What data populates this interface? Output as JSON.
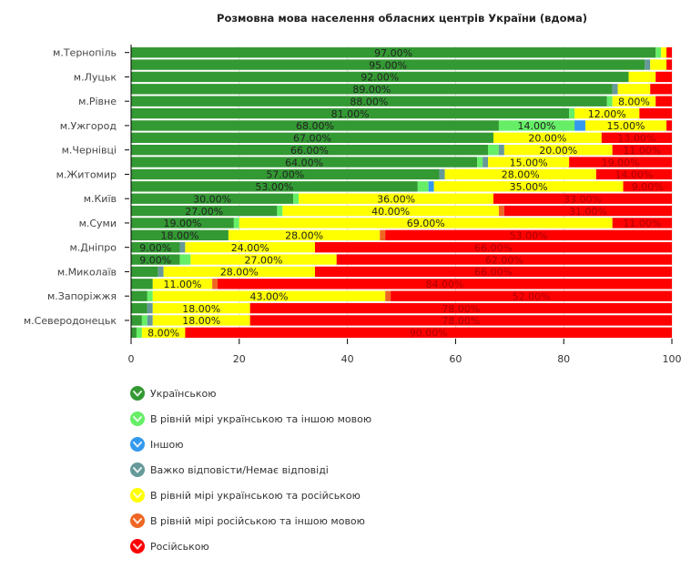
{
  "chart_data": {
    "type": "bar",
    "orientation": "horizontal",
    "stacked": true,
    "title": "Розмовна мова населення обласних центрів України (вдома)",
    "xlabel": "",
    "ylabel": "",
    "xlim": [
      0,
      100
    ],
    "xticks": [
      "0",
      "20",
      "40",
      "60",
      "80",
      "100"
    ],
    "grid": true,
    "legend_position": "bottom-left",
    "categories": [
      "м.Тернопіль",
      "",
      "м.Луцьк",
      "",
      "м.Рівне",
      "",
      "м.Ужгород",
      "",
      "м.Чернівці",
      "",
      "м.Житомир",
      "",
      "м.Київ",
      "",
      "м.Суми",
      "",
      "м.Дніпро",
      "",
      "м.Миколаїв",
      "",
      "м.Запоріжжя",
      "",
      "м.Северодонецьк",
      ""
    ],
    "series": [
      {
        "name": "Українською",
        "color": "#339933",
        "values": [
          97,
          95,
          92,
          89,
          88,
          81,
          68,
          67,
          66,
          64,
          57,
          53,
          30,
          27,
          19,
          18,
          9,
          9,
          5,
          4,
          3,
          3,
          2,
          1
        ]
      },
      {
        "name": "В рівній мірі українською та іншою мовою",
        "color": "#66ee66",
        "values": [
          1,
          0,
          0,
          0,
          1,
          1,
          14,
          0,
          2,
          1,
          0,
          2,
          1,
          1,
          1,
          0,
          0,
          2,
          0,
          0,
          1,
          0,
          1,
          1
        ]
      },
      {
        "name": "Іншою",
        "color": "#3399ee",
        "values": [
          0,
          0,
          0,
          0,
          0,
          0,
          2,
          0,
          0,
          0,
          0,
          1,
          0,
          0,
          0,
          0,
          0,
          0,
          0,
          0,
          0,
          0,
          0,
          0
        ]
      },
      {
        "name": "Важко відповісти/Немає відповіді",
        "color": "#669999",
        "values": [
          0,
          1,
          0,
          1,
          0,
          0,
          0,
          0,
          1,
          1,
          1,
          0,
          0,
          0,
          0,
          0,
          1,
          0,
          1,
          0,
          0,
          1,
          1,
          0
        ]
      },
      {
        "name": "В рівній мірі українською та російською",
        "color": "#ffff00",
        "values": [
          1,
          3,
          5,
          6,
          8,
          12,
          15,
          20,
          20,
          15,
          28,
          35,
          36,
          40,
          69,
          28,
          24,
          27,
          28,
          11,
          43,
          18,
          18,
          8
        ]
      },
      {
        "name": "В рівній мірі російською та іншою мовою",
        "color": "#ee6622",
        "values": [
          0,
          0,
          0,
          0,
          0,
          0,
          0,
          0,
          0,
          0,
          0,
          0,
          0,
          1,
          0,
          1,
          0,
          0,
          0,
          1,
          1,
          0,
          0,
          0
        ]
      },
      {
        "name": "Російською",
        "color": "#ff0000",
        "values": [
          1,
          1,
          3,
          4,
          3,
          6,
          1,
          13,
          11,
          19,
          14,
          9,
          33,
          31,
          11,
          53,
          66,
          62,
          66,
          84,
          52,
          78,
          78,
          90
        ]
      }
    ],
    "data_labels": [
      [
        {
          "series": 0,
          "text": "97.00%"
        }
      ],
      [
        {
          "series": 0,
          "text": "95.00%"
        }
      ],
      [
        {
          "series": 0,
          "text": "92.00%"
        }
      ],
      [
        {
          "series": 0,
          "text": "89.00%"
        }
      ],
      [
        {
          "series": 0,
          "text": "88.00%"
        },
        {
          "series": 4,
          "text": "8.00%"
        }
      ],
      [
        {
          "series": 0,
          "text": "81.00%"
        },
        {
          "series": 4,
          "text": "12.00%"
        }
      ],
      [
        {
          "series": 0,
          "text": "68.00%"
        },
        {
          "series": 1,
          "text": "14.00%"
        },
        {
          "series": 4,
          "text": "15.00%"
        }
      ],
      [
        {
          "series": 0,
          "text": "67.00%"
        },
        {
          "series": 4,
          "text": "20.00%"
        },
        {
          "series": 6,
          "text": "13.00%"
        }
      ],
      [
        {
          "series": 0,
          "text": "66.00%"
        },
        {
          "series": 4,
          "text": "20.00%"
        },
        {
          "series": 6,
          "text": "11.00%"
        }
      ],
      [
        {
          "series": 0,
          "text": "64.00%"
        },
        {
          "series": 4,
          "text": "15.00%"
        },
        {
          "series": 6,
          "text": "19.00%"
        }
      ],
      [
        {
          "series": 0,
          "text": "57.00%"
        },
        {
          "series": 4,
          "text": "28.00%"
        },
        {
          "series": 6,
          "text": "14.00%"
        }
      ],
      [
        {
          "series": 0,
          "text": "53.00%"
        },
        {
          "series": 4,
          "text": "35.00%"
        },
        {
          "series": 6,
          "text": "9.00%"
        }
      ],
      [
        {
          "series": 0,
          "text": "30.00%"
        },
        {
          "series": 4,
          "text": "36.00%"
        },
        {
          "series": 6,
          "text": "33.00%"
        }
      ],
      [
        {
          "series": 0,
          "text": "27.00%"
        },
        {
          "series": 4,
          "text": "40.00%"
        },
        {
          "series": 6,
          "text": "31.00%"
        }
      ],
      [
        {
          "series": 0,
          "text": "19.00%"
        },
        {
          "series": 4,
          "text": "69.00%"
        },
        {
          "series": 6,
          "text": "11.00%"
        }
      ],
      [
        {
          "series": 0,
          "text": "18.00%"
        },
        {
          "series": 4,
          "text": "28.00%"
        },
        {
          "series": 6,
          "text": "53.00%"
        }
      ],
      [
        {
          "series": 0,
          "text": "9.00%"
        },
        {
          "series": 4,
          "text": "24.00%"
        },
        {
          "series": 6,
          "text": "66.00%"
        }
      ],
      [
        {
          "series": 0,
          "text": "9.00%"
        },
        {
          "series": 4,
          "text": "27.00%"
        },
        {
          "series": 6,
          "text": "62.00%"
        }
      ],
      [
        {
          "series": 4,
          "text": "28.00%"
        },
        {
          "series": 6,
          "text": "66.00%"
        }
      ],
      [
        {
          "series": 4,
          "text": "11.00%"
        },
        {
          "series": 6,
          "text": "84.00%"
        }
      ],
      [
        {
          "series": 4,
          "text": "43.00%"
        },
        {
          "series": 6,
          "text": "52.00%"
        }
      ],
      [
        {
          "series": 4,
          "text": "18.00%"
        },
        {
          "series": 6,
          "text": "78.00%"
        }
      ],
      [
        {
          "series": 4,
          "text": "18.00%"
        },
        {
          "series": 6,
          "text": "78.00%"
        }
      ],
      [
        {
          "series": 4,
          "text": "8.00%"
        },
        {
          "series": 6,
          "text": "90.00%"
        }
      ]
    ]
  }
}
